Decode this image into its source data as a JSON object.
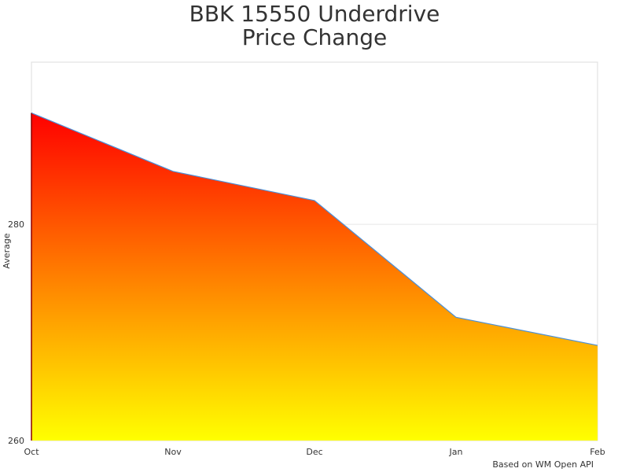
{
  "chart_data": {
    "type": "area",
    "title_line1": "BBK 15550 Underdrive",
    "title_line2": "Price Change",
    "ylabel": "Average",
    "xlabel": "",
    "categories": [
      "Oct",
      "Nov",
      "Dec",
      "Jan",
      "Feb"
    ],
    "values": [
      290.3,
      284.9,
      282.2,
      271.4,
      268.8
    ],
    "ylim": [
      260,
      295
    ],
    "yticks": [
      260,
      280
    ],
    "grid": true,
    "gradient_colors": {
      "top": "#ff0000",
      "bottom": "#ffff00"
    },
    "line_color": "#4a90d9",
    "credit": "Based on WM Open API"
  }
}
